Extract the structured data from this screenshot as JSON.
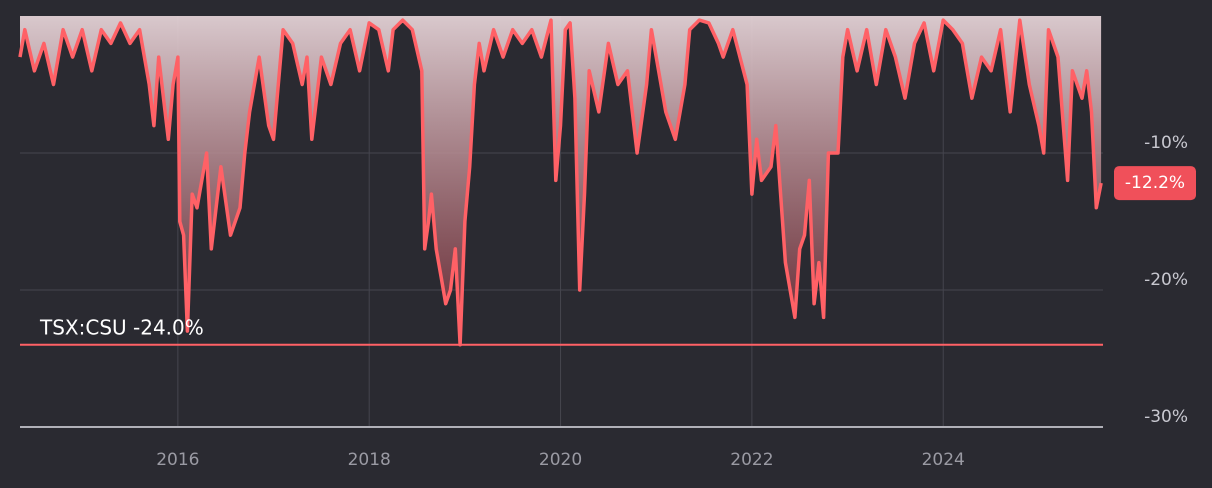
{
  "chart_data": {
    "type": "area",
    "series": [
      {
        "name": "TSX:CSU",
        "color": "#ff6166",
        "x": [
          2014.35,
          2014.4,
          2014.5,
          2014.6,
          2014.7,
          2014.8,
          2014.9,
          2015.0,
          2015.1,
          2015.2,
          2015.3,
          2015.4,
          2015.5,
          2015.6,
          2015.7,
          2015.75,
          2015.8,
          2015.9,
          2015.95,
          2016.0,
          2016.02,
          2016.06,
          2016.1,
          2016.15,
          2016.2,
          2016.3,
          2016.35,
          2016.45,
          2016.55,
          2016.65,
          2016.7,
          2016.75,
          2016.85,
          2016.95,
          2017.0,
          2017.1,
          2017.2,
          2017.3,
          2017.35,
          2017.4,
          2017.5,
          2017.6,
          2017.7,
          2017.8,
          2017.9,
          2018.0,
          2018.1,
          2018.2,
          2018.25,
          2018.35,
          2018.45,
          2018.55,
          2018.58,
          2018.62,
          2018.65,
          2018.7,
          2018.75,
          2018.8,
          2018.85,
          2018.9,
          2018.95,
          2019.0,
          2019.05,
          2019.1,
          2019.15,
          2019.2,
          2019.3,
          2019.4,
          2019.5,
          2019.6,
          2019.7,
          2019.8,
          2019.9,
          2019.95,
          2020.0,
          2020.05,
          2020.1,
          2020.15,
          2020.2,
          2020.25,
          2020.3,
          2020.4,
          2020.5,
          2020.6,
          2020.7,
          2020.8,
          2020.9,
          2020.95,
          2021.0,
          2021.1,
          2021.2,
          2021.3,
          2021.35,
          2021.45,
          2021.55,
          2021.65,
          2021.7,
          2021.8,
          2021.95,
          2022.0,
          2022.05,
          2022.1,
          2022.2,
          2022.25,
          2022.3,
          2022.35,
          2022.45,
          2022.5,
          2022.55,
          2022.6,
          2022.65,
          2022.7,
          2022.75,
          2022.8,
          2022.9,
          2022.95,
          2023.0,
          2023.1,
          2023.2,
          2023.3,
          2023.4,
          2023.5,
          2023.6,
          2023.7,
          2023.8,
          2023.9,
          2024.0,
          2024.1,
          2024.2,
          2024.3,
          2024.4,
          2024.5,
          2024.6,
          2024.7,
          2024.8,
          2024.9,
          2025.0,
          2025.05,
          2025.1,
          2025.2,
          2025.3,
          2025.35,
          2025.45,
          2025.5,
          2025.55,
          2025.6,
          2025.65
        ],
        "values": [
          -3,
          -1,
          -4,
          -2,
          -5,
          -1,
          -3,
          -1,
          -4,
          -1,
          -2,
          -0.5,
          -2,
          -1,
          -5,
          -8,
          -3,
          -9,
          -5,
          -3,
          -15,
          -16,
          -23,
          -13,
          -14,
          -10,
          -17,
          -11,
          -16,
          -14,
          -10,
          -7,
          -3,
          -8,
          -9,
          -1,
          -2,
          -5,
          -3,
          -9,
          -3,
          -5,
          -2,
          -1,
          -4,
          -0.5,
          -1,
          -4,
          -1,
          -0.3,
          -1,
          -4,
          -17,
          -15,
          -13,
          -17,
          -19,
          -21,
          -20,
          -17,
          -24,
          -15,
          -11,
          -5,
          -2,
          -4,
          -1,
          -3,
          -1,
          -2,
          -1,
          -3,
          -0.3,
          -12,
          -8,
          -1,
          -0.5,
          -6,
          -20,
          -13,
          -4,
          -7,
          -2,
          -5,
          -4,
          -10,
          -5,
          -1,
          -3,
          -7,
          -9,
          -5,
          -1,
          -0.3,
          -0.5,
          -2,
          -3,
          -1,
          -5,
          -13,
          -9,
          -12,
          -11,
          -8,
          -13,
          -18,
          -22,
          -17,
          -16,
          -12,
          -21,
          -18,
          -22,
          -10,
          -10,
          -3,
          -1,
          -4,
          -1,
          -5,
          -1,
          -3,
          -6,
          -2,
          -0.5,
          -4,
          -0.3,
          -1,
          -2,
          -6,
          -3,
          -4,
          -1,
          -7,
          -0.3,
          -5,
          -8,
          -10,
          -1,
          -3,
          -12,
          -4,
          -6,
          -4,
          -7,
          -14,
          -12.2
        ]
      }
    ],
    "xlim": [
      2014.35,
      2025.67
    ],
    "xticks": [
      2016,
      2018,
      2020,
      2022,
      2024
    ],
    "ylim": [
      -30,
      0
    ],
    "yticks": [
      {
        "value": -10,
        "label": "-10%"
      },
      {
        "value": -20,
        "label": "-20%"
      },
      {
        "value": -30,
        "label": "-30%"
      }
    ],
    "grid": true,
    "max_drawdown": {
      "value": -24.0,
      "label": "TSX:CSU -24.0%"
    },
    "current": {
      "value": -12.2,
      "label": "-12.2%"
    }
  }
}
